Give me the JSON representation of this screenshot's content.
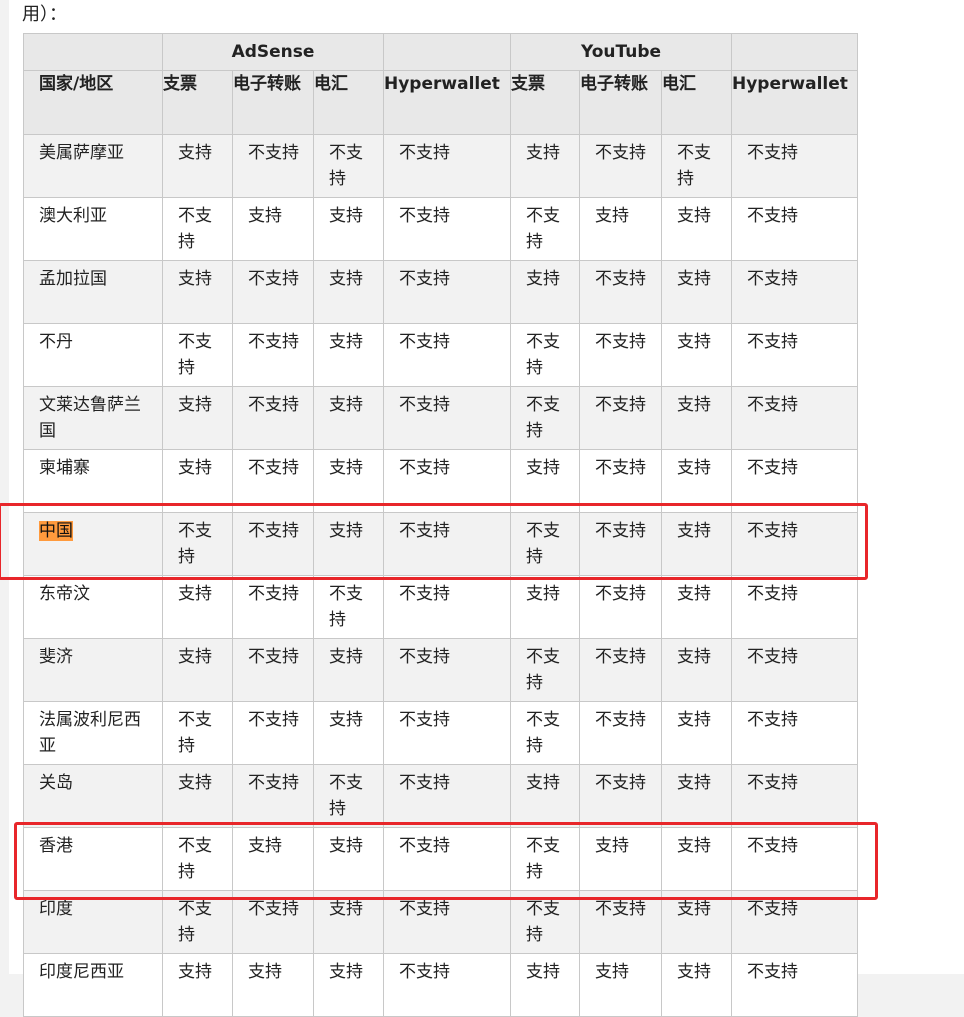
{
  "lead_text": "用）：",
  "table": {
    "groups": [
      {
        "label": ""
      },
      {
        "label": "AdSense"
      },
      {
        "label": ""
      },
      {
        "label": "YouTube"
      },
      {
        "label": ""
      }
    ],
    "headers": [
      "国家/地区",
      "支票",
      "电子转账",
      "电汇",
      "Hyperwallet",
      "支票",
      "电子转账",
      "电汇",
      "Hyperwallet"
    ],
    "rows": [
      {
        "cells": [
          "美属萨摩亚",
          "支持",
          "不支持",
          "不支持",
          "不支持",
          "支持",
          "不支持",
          "不支持",
          "不支持"
        ]
      },
      {
        "cells": [
          "澳大利亚",
          "不支持",
          "支持",
          "支持",
          "不支持",
          "不支持",
          "支持",
          "支持",
          "不支持"
        ]
      },
      {
        "cells": [
          "孟加拉国",
          "支持",
          "不支持",
          "支持",
          "不支持",
          "支持",
          "不支持",
          "支持",
          "不支持"
        ]
      },
      {
        "cells": [
          "不丹",
          "不支持",
          "不支持",
          "支持",
          "不支持",
          "不支持",
          "不支持",
          "支持",
          "不支持"
        ]
      },
      {
        "cells": [
          "文莱达鲁萨兰国",
          "支持",
          "不支持",
          "支持",
          "不支持",
          "不支持",
          "不支持",
          "支持",
          "不支持"
        ]
      },
      {
        "cells": [
          "柬埔寨",
          "支持",
          "不支持",
          "支持",
          "不支持",
          "支持",
          "不支持",
          "支持",
          "不支持"
        ]
      },
      {
        "cells": [
          "中国",
          "不支持",
          "不支持",
          "支持",
          "不支持",
          "不支持",
          "不支持",
          "支持",
          "不支持"
        ],
        "highlight_first": true
      },
      {
        "cells": [
          "东帝汶",
          "支持",
          "不支持",
          "不支持",
          "不支持",
          "支持",
          "不支持",
          "支持",
          "不支持"
        ]
      },
      {
        "cells": [
          "斐济",
          "支持",
          "不支持",
          "支持",
          "不支持",
          "不支持",
          "不支持",
          "支持",
          "不支持"
        ]
      },
      {
        "cells": [
          "法属波利尼西亚",
          "不支持",
          "不支持",
          "支持",
          "不支持",
          "不支持",
          "不支持",
          "支持",
          "不支持"
        ]
      },
      {
        "cells": [
          "关岛",
          "支持",
          "不支持",
          "不支持",
          "不支持",
          "支持",
          "不支持",
          "支持",
          "不支持"
        ]
      },
      {
        "cells": [
          "香港",
          "不支持",
          "支持",
          "支持",
          "不支持",
          "不支持",
          "支持",
          "支持",
          "不支持"
        ]
      },
      {
        "cells": [
          "印度",
          "不支持",
          "不支持",
          "支持",
          "不支持",
          "不支持",
          "不支持",
          "支持",
          "不支持"
        ]
      },
      {
        "cells": [
          "印度尼西亚",
          "支持",
          "支持",
          "支持",
          "不支持",
          "支持",
          "支持",
          "支持",
          "不支持"
        ]
      }
    ]
  },
  "annotations": {
    "box_color": "#e8262a",
    "highlight_color": "#ff9a3d",
    "boxed_rows": [
      "中国",
      "香港"
    ]
  }
}
